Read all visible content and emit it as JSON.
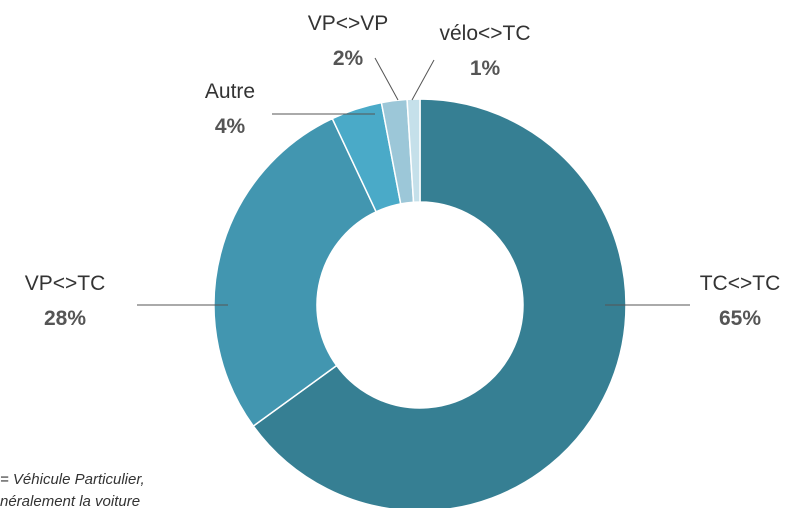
{
  "chart_data": {
    "type": "donut",
    "categories": [
      "TC<>TC",
      "VP<>TC",
      "Autre",
      "VP<>VP",
      "vélo<>TC"
    ],
    "values": [
      65,
      28,
      4,
      2,
      1
    ],
    "value_labels": [
      "65%",
      "28%",
      "4%",
      "2%",
      "1%"
    ],
    "colors": [
      "#367f93",
      "#4296b0",
      "#4aaac8",
      "#9cc7d8",
      "#c5e0ea"
    ],
    "footnote": [
      "= Véhicule Particulier,",
      "néralement la voiture"
    ]
  }
}
